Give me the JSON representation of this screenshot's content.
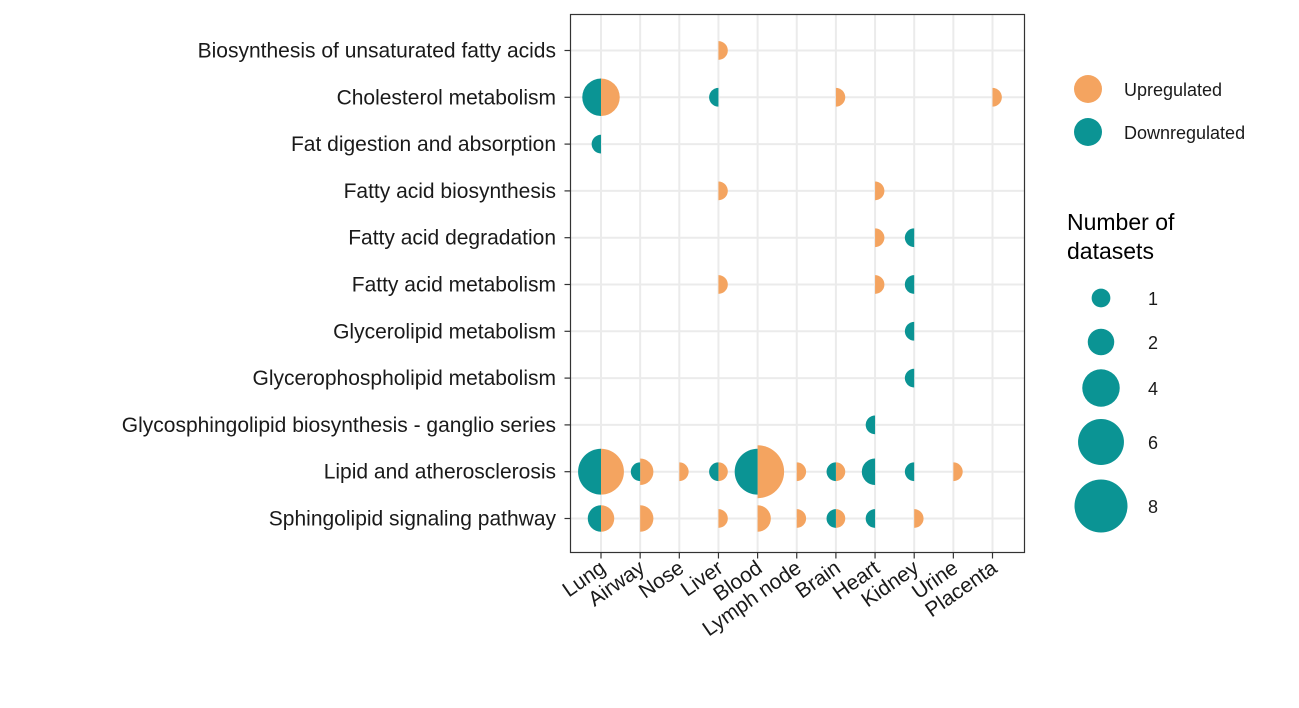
{
  "chart_data": {
    "type": "scatter",
    "subtype": "split-bubble",
    "x_categories": [
      "Lung",
      "Airway",
      "Nose",
      "Liver",
      "Blood",
      "Lymph node",
      "Brain",
      "Heart",
      "Kidney",
      "Urine",
      "Placenta"
    ],
    "y_categories": [
      "Biosynthesis of unsaturated fatty acids",
      "Cholesterol metabolism",
      "Fat digestion and absorption",
      "Fatty acid biosynthesis",
      "Fatty acid degradation",
      "Fatty acid metabolism",
      "Glycerolipid metabolism",
      "Glycerophospholipid metabolism",
      "Glycosphingolipid biosynthesis - ganglio series",
      "Lipid and atherosclerosis",
      "Sphingolipid signaling pathway"
    ],
    "series": [
      {
        "name": "Upregulated",
        "color": "#F4A460",
        "points": [
          {
            "y": "Biosynthesis of unsaturated fatty acids",
            "x": "Liver",
            "size": 1
          },
          {
            "y": "Cholesterol metabolism",
            "x": "Lung",
            "size": 4
          },
          {
            "y": "Cholesterol metabolism",
            "x": "Brain",
            "size": 1
          },
          {
            "y": "Cholesterol metabolism",
            "x": "Placenta",
            "size": 1
          },
          {
            "y": "Fatty acid biosynthesis",
            "x": "Liver",
            "size": 1
          },
          {
            "y": "Fatty acid biosynthesis",
            "x": "Heart",
            "size": 1
          },
          {
            "y": "Fatty acid degradation",
            "x": "Heart",
            "size": 1
          },
          {
            "y": "Fatty acid metabolism",
            "x": "Liver",
            "size": 1
          },
          {
            "y": "Fatty acid metabolism",
            "x": "Heart",
            "size": 1
          },
          {
            "y": "Lipid and atherosclerosis",
            "x": "Lung",
            "size": 6
          },
          {
            "y": "Lipid and atherosclerosis",
            "x": "Airway",
            "size": 2
          },
          {
            "y": "Lipid and atherosclerosis",
            "x": "Nose",
            "size": 1
          },
          {
            "y": "Lipid and atherosclerosis",
            "x": "Liver",
            "size": 1
          },
          {
            "y": "Lipid and atherosclerosis",
            "x": "Blood",
            "size": 8
          },
          {
            "y": "Lipid and atherosclerosis",
            "x": "Lymph node",
            "size": 1
          },
          {
            "y": "Lipid and atherosclerosis",
            "x": "Brain",
            "size": 1
          },
          {
            "y": "Lipid and atherosclerosis",
            "x": "Urine",
            "size": 1
          },
          {
            "y": "Sphingolipid signaling pathway",
            "x": "Lung",
            "size": 2
          },
          {
            "y": "Sphingolipid signaling pathway",
            "x": "Airway",
            "size": 2
          },
          {
            "y": "Sphingolipid signaling pathway",
            "x": "Liver",
            "size": 1
          },
          {
            "y": "Sphingolipid signaling pathway",
            "x": "Blood",
            "size": 2
          },
          {
            "y": "Sphingolipid signaling pathway",
            "x": "Lymph node",
            "size": 1
          },
          {
            "y": "Sphingolipid signaling pathway",
            "x": "Brain",
            "size": 1
          },
          {
            "y": "Sphingolipid signaling pathway",
            "x": "Kidney",
            "size": 1
          }
        ]
      },
      {
        "name": "Downregulated",
        "color": "#0B9494",
        "points": [
          {
            "y": "Cholesterol metabolism",
            "x": "Lung",
            "size": 4
          },
          {
            "y": "Cholesterol metabolism",
            "x": "Liver",
            "size": 1
          },
          {
            "y": "Fat digestion and absorption",
            "x": "Lung",
            "size": 1
          },
          {
            "y": "Fatty acid degradation",
            "x": "Kidney",
            "size": 1
          },
          {
            "y": "Fatty acid metabolism",
            "x": "Kidney",
            "size": 1
          },
          {
            "y": "Glycerolipid metabolism",
            "x": "Kidney",
            "size": 1
          },
          {
            "y": "Glycerophospholipid metabolism",
            "x": "Kidney",
            "size": 1
          },
          {
            "y": "Glycosphingolipid biosynthesis - ganglio series",
            "x": "Heart",
            "size": 1
          },
          {
            "y": "Lipid and atherosclerosis",
            "x": "Lung",
            "size": 6
          },
          {
            "y": "Lipid and atherosclerosis",
            "x": "Airway",
            "size": 1
          },
          {
            "y": "Lipid and atherosclerosis",
            "x": "Liver",
            "size": 1
          },
          {
            "y": "Lipid and atherosclerosis",
            "x": "Blood",
            "size": 6
          },
          {
            "y": "Lipid and atherosclerosis",
            "x": "Brain",
            "size": 1
          },
          {
            "y": "Lipid and atherosclerosis",
            "x": "Heart",
            "size": 2
          },
          {
            "y": "Lipid and atherosclerosis",
            "x": "Kidney",
            "size": 1
          },
          {
            "y": "Sphingolipid signaling pathway",
            "x": "Lung",
            "size": 2
          },
          {
            "y": "Sphingolipid signaling pathway",
            "x": "Brain",
            "size": 1
          },
          {
            "y": "Sphingolipid signaling pathway",
            "x": "Heart",
            "size": 1
          }
        ]
      }
    ],
    "size_legend": {
      "title_lines": [
        "Number of",
        "datasets"
      ],
      "breaks": [
        1,
        2,
        4,
        6,
        8
      ],
      "max": 8
    },
    "grid": true,
    "legend_position": "right"
  }
}
